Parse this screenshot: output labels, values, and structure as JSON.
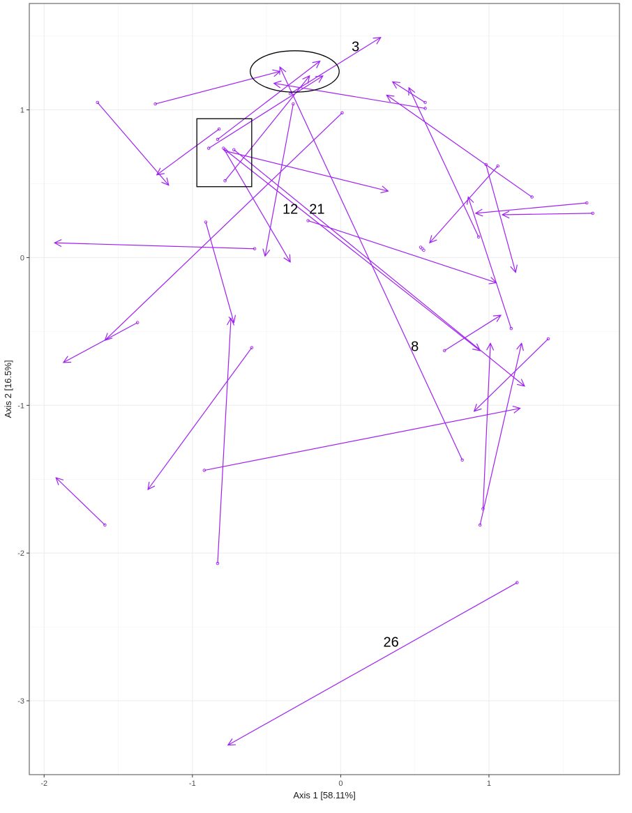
{
  "chart_data": {
    "type": "scatter",
    "subtype": "arrow-plot",
    "xlabel": "Axis 1   [58.11%]",
    "ylabel": "Axis 2   [16.5%]",
    "xlim": [
      -2.1,
      1.88
    ],
    "ylim": [
      -3.5,
      1.72
    ],
    "x_ticks": [
      -2,
      -1,
      0,
      1
    ],
    "y_ticks": [
      -3,
      -2,
      -1,
      0,
      1
    ],
    "grid": true,
    "series_color": "#a020f0",
    "arrows": [
      {
        "from": [
          -1.25,
          1.04
        ],
        "to": [
          -0.41,
          1.26
        ]
      },
      {
        "from": [
          0.57,
          1.01
        ],
        "to": [
          -0.45,
          1.18
        ]
      },
      {
        "from": [
          0.82,
          -1.37
        ],
        "to": [
          -0.41,
          1.29
        ]
      },
      {
        "from": [
          -0.83,
          0.8
        ],
        "to": [
          -0.14,
          1.33
        ]
      },
      {
        "from": [
          -0.78,
          0.52
        ],
        "to": [
          -0.21,
          1.23
        ]
      },
      {
        "from": [
          -0.82,
          0.87
        ],
        "to": [
          -1.24,
          0.56
        ]
      },
      {
        "from": [
          -0.34,
          1.11
        ],
        "to": [
          0.27,
          1.49
        ]
      },
      {
        "from": [
          -1.64,
          1.05
        ],
        "to": [
          -1.16,
          0.49
        ]
      },
      {
        "from": [
          -0.89,
          0.74
        ],
        "to": [
          -0.12,
          1.23
        ]
      },
      {
        "from": [
          -0.77,
          0.72
        ],
        "to": [
          0.32,
          0.45
        ]
      },
      {
        "from": [
          -0.72,
          0.73
        ],
        "to": [
          1.24,
          -0.87
        ]
      },
      {
        "from": [
          -0.79,
          0.74
        ],
        "to": [
          -0.34,
          -0.03
        ]
      },
      {
        "from": [
          -0.32,
          1.04
        ],
        "to": [
          -0.51,
          0.01
        ]
      },
      {
        "from": [
          -0.22,
          0.25
        ],
        "to": [
          1.05,
          -0.17
        ]
      },
      {
        "from": [
          -0.58,
          0.06
        ],
        "to": [
          -1.93,
          0.1
        ]
      },
      {
        "from": [
          0.01,
          0.98
        ],
        "to": [
          -1.59,
          -0.56
        ]
      },
      {
        "from": [
          -0.91,
          0.24
        ],
        "to": [
          -0.72,
          -0.44
        ]
      },
      {
        "from": [
          -1.37,
          -0.44
        ],
        "to": [
          -1.87,
          -0.71
        ]
      },
      {
        "from": [
          -0.6,
          -0.61
        ],
        "to": [
          -1.3,
          -1.57
        ]
      },
      {
        "from": [
          -0.83,
          -2.07
        ],
        "to": [
          -0.74,
          -0.41
        ]
      },
      {
        "from": [
          -0.92,
          -1.44
        ],
        "to": [
          1.21,
          -1.02
        ]
      },
      {
        "from": [
          -1.59,
          -1.81
        ],
        "to": [
          -1.92,
          -1.49
        ]
      },
      {
        "from": [
          1.19,
          -2.2
        ],
        "to": [
          -0.76,
          -3.3
        ]
      },
      {
        "from": [
          0.7,
          -0.63
        ],
        "to": [
          1.08,
          -0.39
        ]
      },
      {
        "from": [
          0.94,
          -1.81
        ],
        "to": [
          1.22,
          -0.58
        ]
      },
      {
        "from": [
          0.96,
          -1.7
        ],
        "to": [
          1.01,
          -0.58
        ]
      },
      {
        "from": [
          1.4,
          -0.55
        ],
        "to": [
          0.9,
          -1.04
        ]
      },
      {
        "from": [
          1.15,
          -0.48
        ],
        "to": [
          0.86,
          0.41
        ]
      },
      {
        "from": [
          1.7,
          0.3
        ],
        "to": [
          1.09,
          0.29
        ]
      },
      {
        "from": [
          1.66,
          0.37
        ],
        "to": [
          0.91,
          0.3
        ]
      },
      {
        "from": [
          1.06,
          0.62
        ],
        "to": [
          0.6,
          0.1
        ]
      },
      {
        "from": [
          0.98,
          0.63
        ],
        "to": [
          1.18,
          -0.1
        ]
      },
      {
        "from": [
          1.29,
          0.41
        ],
        "to": [
          0.31,
          1.1
        ]
      },
      {
        "from": [
          0.93,
          0.14
        ],
        "to": [
          0.46,
          1.15
        ]
      },
      {
        "from": [
          0.57,
          1.05
        ],
        "to": [
          0.35,
          1.19
        ]
      },
      {
        "from": [
          -0.78,
          0.73
        ],
        "to": [
          0.94,
          -0.63
        ]
      }
    ],
    "stationary_points": [
      [
        0.54,
        0.07
      ],
      [
        0.55,
        0.06
      ],
      [
        0.56,
        0.05
      ]
    ],
    "annotations": [
      {
        "text": "3",
        "x": 0.1,
        "y": 1.43
      },
      {
        "text": "12",
        "x": -0.34,
        "y": 0.33
      },
      {
        "text": "21",
        "x": -0.16,
        "y": 0.33
      },
      {
        "text": "8",
        "x": 0.5,
        "y": -0.6
      },
      {
        "text": "26",
        "x": 0.34,
        "y": -2.6
      }
    ],
    "ellipse": {
      "cx": -0.31,
      "cy": 1.26,
      "rx": 0.3,
      "ry": 0.14
    },
    "rectangle": {
      "x0": -0.97,
      "x1": -0.6,
      "y0": 0.48,
      "y1": 0.94
    }
  }
}
